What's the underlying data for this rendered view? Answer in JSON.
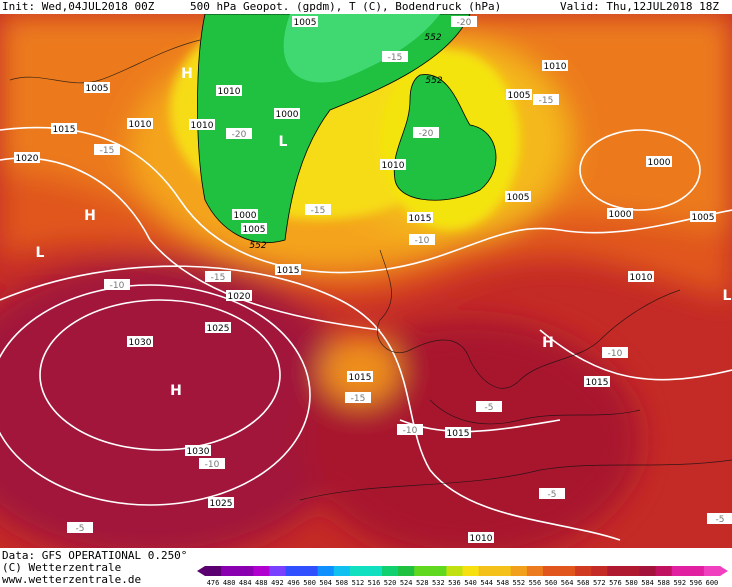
{
  "header": {
    "init": "Init: Wed,04JUL2018 00Z",
    "field": "500 hPa Geopot. (gpdm), T (C), Bodendruck (hPa)",
    "valid": "Valid: Thu,12JUL2018 18Z"
  },
  "footer": {
    "data": "Data: GFS OPERATIONAL 0.250°",
    "copyright": "(C) Wetterzentrale",
    "url": "www.wetterzentrale.de"
  },
  "colorbar": {
    "ticks": [
      "476",
      "480",
      "484",
      "488",
      "492",
      "496",
      "500",
      "504",
      "508",
      "512",
      "516",
      "520",
      "524",
      "528",
      "532",
      "536",
      "540",
      "544",
      "548",
      "552",
      "556",
      "560",
      "564",
      "568",
      "572",
      "576",
      "580",
      "584",
      "588",
      "592",
      "596",
      "600"
    ]
  },
  "map_labels": [
    "1005",
    "1005",
    "1005",
    "1005",
    "1005",
    "1005",
    "1010",
    "1010",
    "1010",
    "1010",
    "1010",
    "1010",
    "1000",
    "1000",
    "1000",
    "1000",
    "1015",
    "1015",
    "1015",
    "1015",
    "1015",
    "1015",
    "1020",
    "1020",
    "1025",
    "1025",
    "1030",
    "1030",
    "1010",
    "-20",
    "-20",
    "-20",
    "-15",
    "-15",
    "-15",
    "-15",
    "-15",
    "-15",
    "-10",
    "-10",
    "-10",
    "-10",
    "-10",
    "-5",
    "-5",
    "-5",
    "-5",
    "552",
    "552",
    "552",
    "H",
    "H",
    "H",
    "H",
    "L",
    "L",
    "L"
  ]
}
